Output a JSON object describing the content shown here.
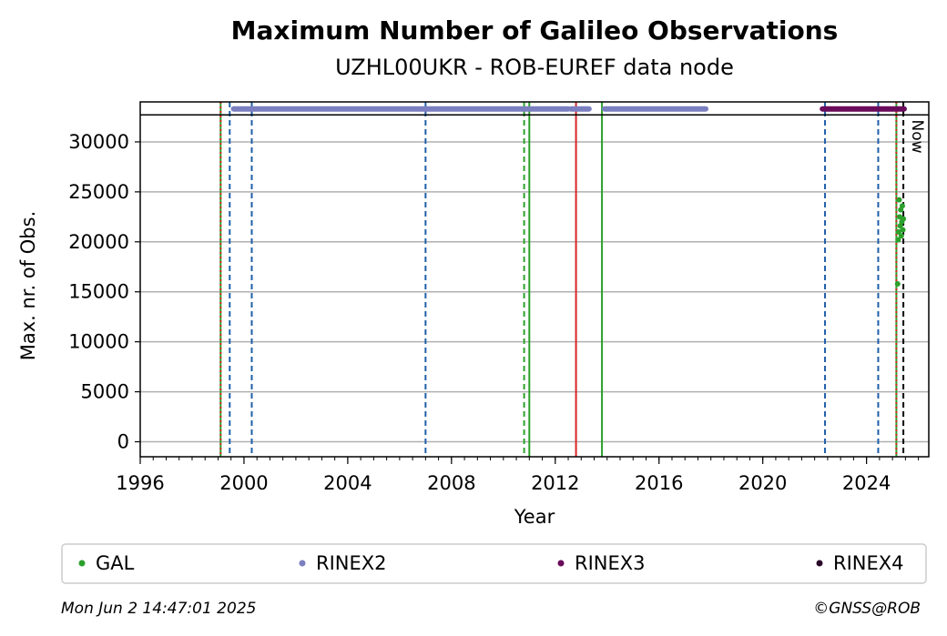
{
  "chart_data": {
    "type": "scatter",
    "title": "Maximum Number of Galileo Observations",
    "subtitle": "UZHL00UKR - ROB-EUREF data node",
    "xlabel": "Year",
    "ylabel": "Max. nr. of Obs.",
    "xlim": [
      1996.0,
      2026.4
    ],
    "ylim": [
      -1500,
      34000
    ],
    "x_ticks": [
      1996,
      2000,
      2004,
      2008,
      2012,
      2016,
      2020,
      2024
    ],
    "y_ticks": [
      0,
      5000,
      10000,
      15000,
      20000,
      25000,
      30000
    ],
    "grid": "horizontal",
    "legend_placement": "below plot",
    "series": [
      {
        "name": "GAL",
        "color": "#2ca02c",
        "points": [
          [
            2025.2,
            15800
          ],
          [
            2025.22,
            20200
          ],
          [
            2025.24,
            21000
          ],
          [
            2025.26,
            24200
          ],
          [
            2025.28,
            22500
          ],
          [
            2025.3,
            21600
          ],
          [
            2025.32,
            23200
          ],
          [
            2025.34,
            20600
          ],
          [
            2025.36,
            22000
          ],
          [
            2025.38,
            23600
          ],
          [
            2025.4,
            21200
          ],
          [
            2025.42,
            22300
          ]
        ]
      },
      {
        "name": "RINEX2",
        "color": "#7b7fbf",
        "segments": [
          [
            1999.6,
            2012.5
          ],
          [
            2012.6,
            2013.3
          ],
          [
            2013.9,
            2017.8
          ]
        ],
        "y": 33300
      },
      {
        "name": "RINEX3",
        "color": "#6a0a5a",
        "segments": [
          [
            2022.3,
            2025.45
          ]
        ],
        "y": 33300
      },
      {
        "name": "RINEX4",
        "color": "#2a0a2a",
        "segments": [],
        "y": 33300
      }
    ],
    "separator_y": 32700,
    "vertical_lines": [
      {
        "x": 1999.1,
        "color": "#2ca02c",
        "style": "solid"
      },
      {
        "x": 1999.1,
        "color": "#d62728",
        "style": "dotted"
      },
      {
        "x": 1999.45,
        "color": "#1f5fa8",
        "style": "dashed"
      },
      {
        "x": 2000.3,
        "color": "#1f5fa8",
        "style": "dashed"
      },
      {
        "x": 2007.0,
        "color": "#1f5fa8",
        "style": "dashed"
      },
      {
        "x": 2010.8,
        "color": "#2ca02c",
        "style": "dashed"
      },
      {
        "x": 2011.0,
        "color": "#2ca02c",
        "style": "solid"
      },
      {
        "x": 2012.8,
        "color": "#d62728",
        "style": "solid"
      },
      {
        "x": 2013.8,
        "color": "#2ca02c",
        "style": "solid"
      },
      {
        "x": 2022.4,
        "color": "#1f5fa8",
        "style": "dashed"
      },
      {
        "x": 2024.45,
        "color": "#1f5fa8",
        "style": "dashed"
      },
      {
        "x": 2025.15,
        "color": "#2ca02c",
        "style": "solid"
      },
      {
        "x": 2025.15,
        "color": "#d62728",
        "style": "dotted"
      },
      {
        "x": 2025.42,
        "color": "#000000",
        "style": "dashed"
      }
    ],
    "now_label": "Now",
    "now_x": 2025.42
  },
  "footer": {
    "timestamp": "Mon Jun  2 14:47:01 2025",
    "credit": "©GNSS@ROB"
  }
}
